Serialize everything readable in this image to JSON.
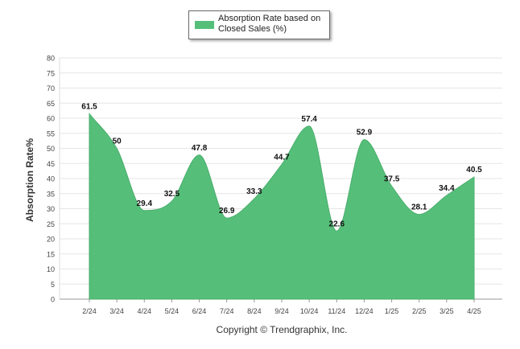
{
  "chart_data": {
    "type": "area",
    "categories": [
      "2/24",
      "3/24",
      "4/24",
      "5/24",
      "6/24",
      "7/24",
      "8/24",
      "9/24",
      "10/24",
      "11/24",
      "12/24",
      "1/25",
      "2/25",
      "3/25",
      "4/25"
    ],
    "series": [
      {
        "name": "Absorption Rate based on Closed Sales (%)",
        "values": [
          61.5,
          50,
          29.4,
          32.5,
          47.8,
          26.9,
          33.3,
          44.7,
          57.4,
          22.6,
          52.9,
          37.5,
          28.1,
          34.4,
          40.5
        ],
        "color": "#55bf7a"
      }
    ],
    "ylabel": "Absorption Rate%",
    "xlabel": "",
    "ylim": [
      0,
      80
    ],
    "yticks": [
      0,
      5,
      10,
      15,
      20,
      25,
      30,
      35,
      40,
      45,
      50,
      55,
      60,
      65,
      70,
      75,
      80
    ],
    "grid": true,
    "legend_position": "top-center"
  },
  "footer": {
    "copyright": "Copyright © Trendgraphix, Inc."
  }
}
